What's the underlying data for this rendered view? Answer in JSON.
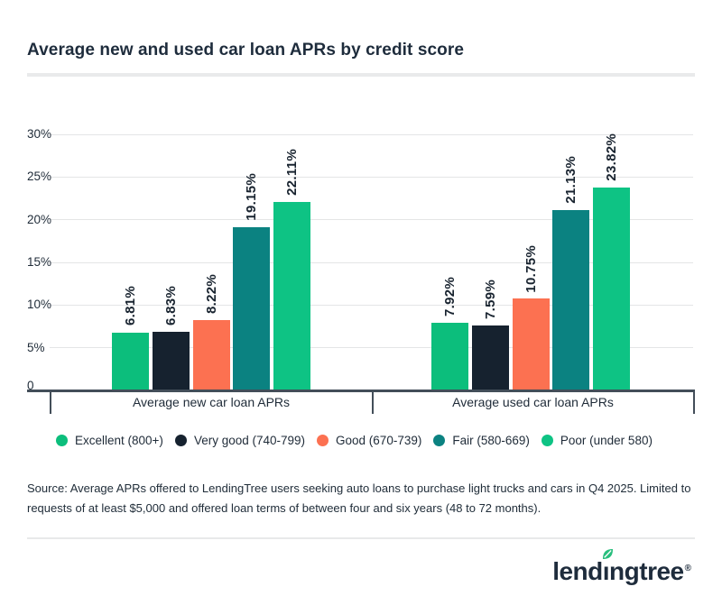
{
  "page": {
    "title": "Average new and used car loan APRs by credit score"
  },
  "chart_data": {
    "type": "bar",
    "title": "Average new and used car loan APRs by credit score",
    "categories": [
      "Average new car loan APRs",
      "Average used car loan APRs"
    ],
    "series": [
      {
        "name": "Excellent (800+)",
        "color": "#0CBE7C",
        "values": [
          6.81,
          7.92
        ],
        "labels": [
          "6.81%",
          "7.92%"
        ]
      },
      {
        "name": "Very good (740-799)",
        "color": "#16222F",
        "values": [
          6.83,
          7.59
        ],
        "labels": [
          "6.83%",
          "7.59%"
        ]
      },
      {
        "name": "Good (670-739)",
        "color": "#FC7151",
        "values": [
          8.22,
          10.75
        ],
        "labels": [
          "8.22%",
          "10.75%"
        ]
      },
      {
        "name": "Fair (580-669)",
        "color": "#0B8281",
        "values": [
          19.15,
          21.13
        ],
        "labels": [
          "19.15%",
          "21.13%"
        ]
      },
      {
        "name": "Poor (under 580)",
        "color": "#0EC384",
        "values": [
          22.11,
          23.82
        ],
        "labels": [
          "22.11%",
          "23.82%"
        ]
      }
    ],
    "y_axis": {
      "max": 30,
      "ticks": [
        {
          "label": "30%",
          "value": 30
        },
        {
          "label": "25%",
          "value": 25
        },
        {
          "label": "20%",
          "value": 20
        },
        {
          "label": "15%",
          "value": 15
        },
        {
          "label": "10%",
          "value": 10
        },
        {
          "label": "5%",
          "value": 5
        },
        {
          "label": "0",
          "value": 0
        }
      ]
    },
    "grid": "horizontal",
    "legend_position": "bottom",
    "value_label_style": "rotated-vertical"
  },
  "source_note": "Source: Average APRs offered to LendingTree users seeking auto loans to purchase light trucks and cars in Q4 2025. Limited to requests of at least $5,000 and offered loan terms of between four and six years (48 to 72 months).",
  "footer": {
    "brand": "lendingtree",
    "registered_mark": "®",
    "leaf_color": "#29BE7D"
  },
  "colors": {
    "background": "#FFFFFF",
    "title_text": "#1E2C3C",
    "axis_line": "#434E59",
    "gridline": "#E4E5E6",
    "body_text": "#212E3A"
  }
}
